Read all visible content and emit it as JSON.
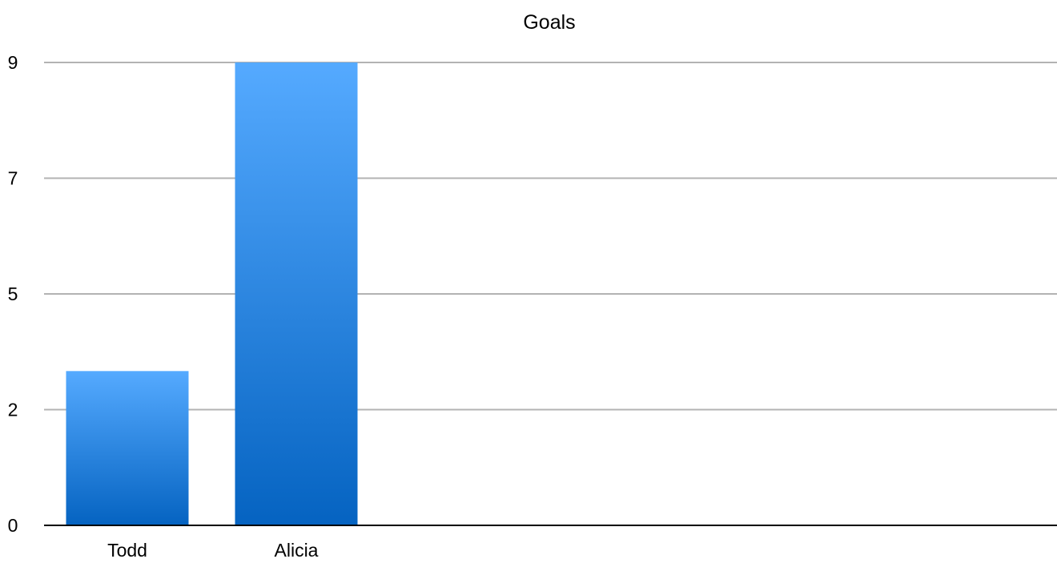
{
  "chart_data": {
    "type": "bar",
    "title": "Goals",
    "categories": [
      "Todd",
      "Alicia"
    ],
    "values": [
      3.0,
      9.0
    ],
    "xlabel": "",
    "ylabel": "",
    "ylim": [
      0,
      9
    ],
    "yticks": [
      0,
      2,
      5,
      7,
      9
    ],
    "grid": true,
    "bar_color_top": "#55aaff",
    "bar_color_bottom": "#0563c1"
  }
}
